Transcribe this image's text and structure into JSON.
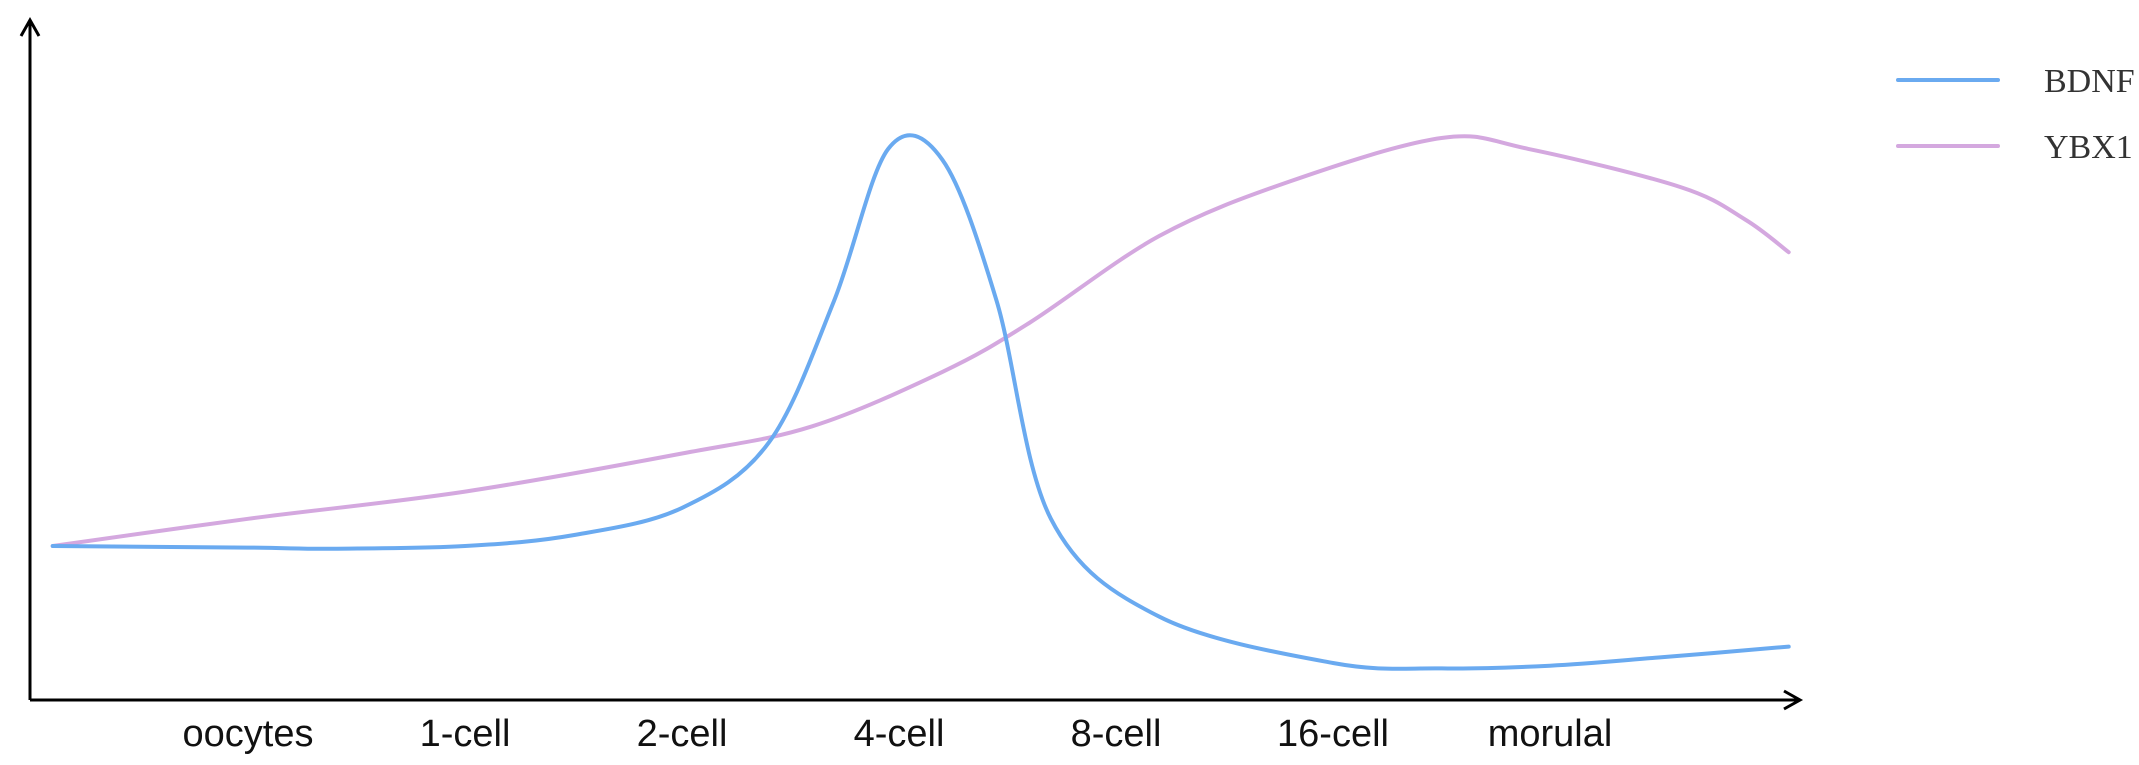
{
  "chart_data": {
    "type": "line",
    "title": "",
    "xlabel": "",
    "ylabel": "",
    "x": [
      "oocytes",
      "1-cell",
      "2-cell",
      "4-cell",
      "8-cell",
      "16-cell",
      "morulal"
    ],
    "ylim": [
      0,
      100
    ],
    "grid": false,
    "legend": "top-right",
    "series": [
      {
        "name": "BDNF",
        "color": "#6aaaf0",
        "points": [
          [
            -0.9,
            25
          ],
          [
            0.0,
            24.7
          ],
          [
            0.4,
            24.5
          ],
          [
            1.0,
            25
          ],
          [
            1.5,
            27
          ],
          [
            2.0,
            32
          ],
          [
            2.4,
            44
          ],
          [
            2.7,
            70
          ],
          [
            2.95,
            98
          ],
          [
            3.2,
            96
          ],
          [
            3.45,
            70
          ],
          [
            3.7,
            30
          ],
          [
            4.2,
            12
          ],
          [
            5.0,
            3.5
          ],
          [
            5.5,
            2.5
          ],
          [
            6.0,
            3
          ],
          [
            6.5,
            4.5
          ],
          [
            7.1,
            6.5
          ]
        ]
      },
      {
        "name": "YBX1",
        "color": "#d4a8df",
        "points": [
          [
            -0.9,
            25
          ],
          [
            0.0,
            30
          ],
          [
            1.0,
            35
          ],
          [
            2.0,
            42
          ],
          [
            2.6,
            47
          ],
          [
            3.2,
            57
          ],
          [
            3.6,
            66
          ],
          [
            4.2,
            82
          ],
          [
            4.8,
            92
          ],
          [
            5.5,
            100
          ],
          [
            5.9,
            98
          ],
          [
            6.6,
            91
          ],
          [
            6.9,
            85
          ],
          [
            7.1,
            79
          ]
        ]
      }
    ]
  }
}
